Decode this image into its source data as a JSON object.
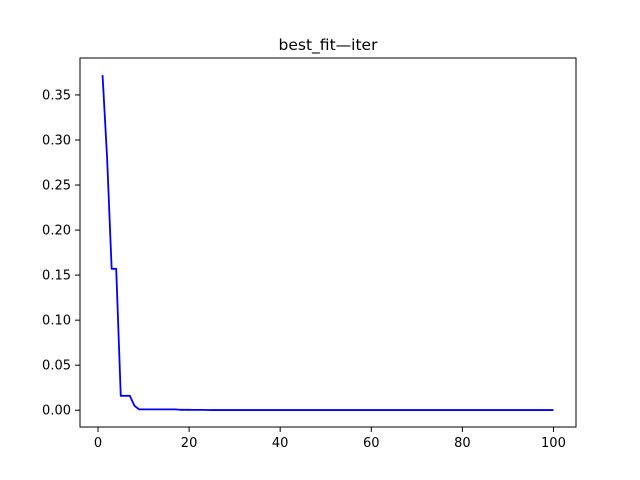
{
  "chart_data": {
    "type": "line",
    "title": "best_fit—iter",
    "xlabel": "",
    "ylabel": "",
    "xlim": [
      -3.95,
      104.95
    ],
    "ylim": [
      -0.0186,
      0.391
    ],
    "grid": false,
    "x_ticks": [
      0,
      20,
      40,
      60,
      80,
      100
    ],
    "x_tick_labels": [
      "0",
      "20",
      "40",
      "60",
      "80",
      "100"
    ],
    "y_ticks": [
      0.0,
      0.05,
      0.1,
      0.15,
      0.2,
      0.25,
      0.3,
      0.35
    ],
    "y_tick_labels": [
      "0.00",
      "0.05",
      "0.10",
      "0.15",
      "0.20",
      "0.25",
      "0.30",
      "0.35"
    ],
    "series": [
      {
        "color": "#0000ff",
        "x": [
          1,
          2,
          3,
          4,
          5,
          6,
          7,
          8,
          9,
          10,
          11,
          12,
          13,
          14,
          15,
          16,
          17,
          18,
          19,
          20,
          21,
          22,
          23,
          24,
          25,
          30,
          40,
          50,
          60,
          70,
          80,
          90,
          100
        ],
        "y": [
          0.372,
          0.28,
          0.157,
          0.157,
          0.016,
          0.016,
          0.016,
          0.005,
          0.001,
          0.001,
          0.001,
          0.001,
          0.001,
          0.001,
          0.001,
          0.001,
          0.001,
          0.0005,
          0.0005,
          0.0005,
          0.0004,
          0.0004,
          0.0004,
          0.0003,
          0.0002,
          0.0002,
          0.0002,
          0.0002,
          0.0002,
          0.0002,
          0.0002,
          0.0002,
          0.0002
        ]
      }
    ]
  }
}
